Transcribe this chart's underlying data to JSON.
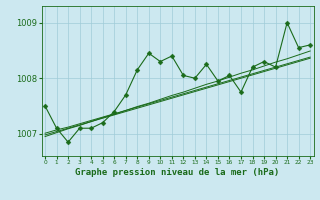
{
  "title": "Graphe pression niveau de la mer (hPa)",
  "x_labels": [
    "0",
    "1",
    "2",
    "3",
    "4",
    "5",
    "6",
    "7",
    "8",
    "9",
    "10",
    "11",
    "12",
    "13",
    "14",
    "15",
    "16",
    "17",
    "18",
    "19",
    "20",
    "21",
    "22",
    "23"
  ],
  "hours": [
    0,
    1,
    2,
    3,
    4,
    5,
    6,
    7,
    8,
    9,
    10,
    11,
    12,
    13,
    14,
    15,
    16,
    17,
    18,
    19,
    20,
    21,
    22,
    23
  ],
  "main_series": [
    1007.5,
    1007.1,
    1006.85,
    1007.1,
    1007.1,
    1007.2,
    1007.4,
    1007.7,
    1008.15,
    1008.45,
    1008.3,
    1008.4,
    1008.05,
    1008.0,
    1008.25,
    1007.95,
    1008.05,
    1007.75,
    1008.2,
    1008.3,
    1008.2,
    1009.0,
    1008.55,
    1008.6
  ],
  "trend1": [
    1006.95,
    1007.02,
    1007.09,
    1007.15,
    1007.22,
    1007.29,
    1007.35,
    1007.42,
    1007.49,
    1007.55,
    1007.62,
    1007.69,
    1007.75,
    1007.82,
    1007.89,
    1007.95,
    1008.02,
    1008.09,
    1008.15,
    1008.22,
    1008.29,
    1008.35,
    1008.42,
    1008.49
  ],
  "trend2": [
    1006.98,
    1007.04,
    1007.1,
    1007.16,
    1007.22,
    1007.28,
    1007.34,
    1007.4,
    1007.46,
    1007.52,
    1007.58,
    1007.64,
    1007.7,
    1007.76,
    1007.82,
    1007.88,
    1007.94,
    1008.0,
    1008.06,
    1008.12,
    1008.18,
    1008.24,
    1008.3,
    1008.36
  ],
  "trend3": [
    1007.01,
    1007.07,
    1007.12,
    1007.18,
    1007.24,
    1007.3,
    1007.36,
    1007.42,
    1007.48,
    1007.54,
    1007.6,
    1007.66,
    1007.72,
    1007.78,
    1007.84,
    1007.9,
    1007.96,
    1008.02,
    1008.08,
    1008.14,
    1008.2,
    1008.26,
    1008.32,
    1008.38
  ],
  "line_color": "#1a6b1a",
  "bg_color": "#cce8f0",
  "grid_color": "#a0ccd8",
  "ylim_min": 1006.6,
  "ylim_max": 1009.3,
  "yticks": [
    1007,
    1008,
    1009
  ],
  "marker_size": 2.5
}
